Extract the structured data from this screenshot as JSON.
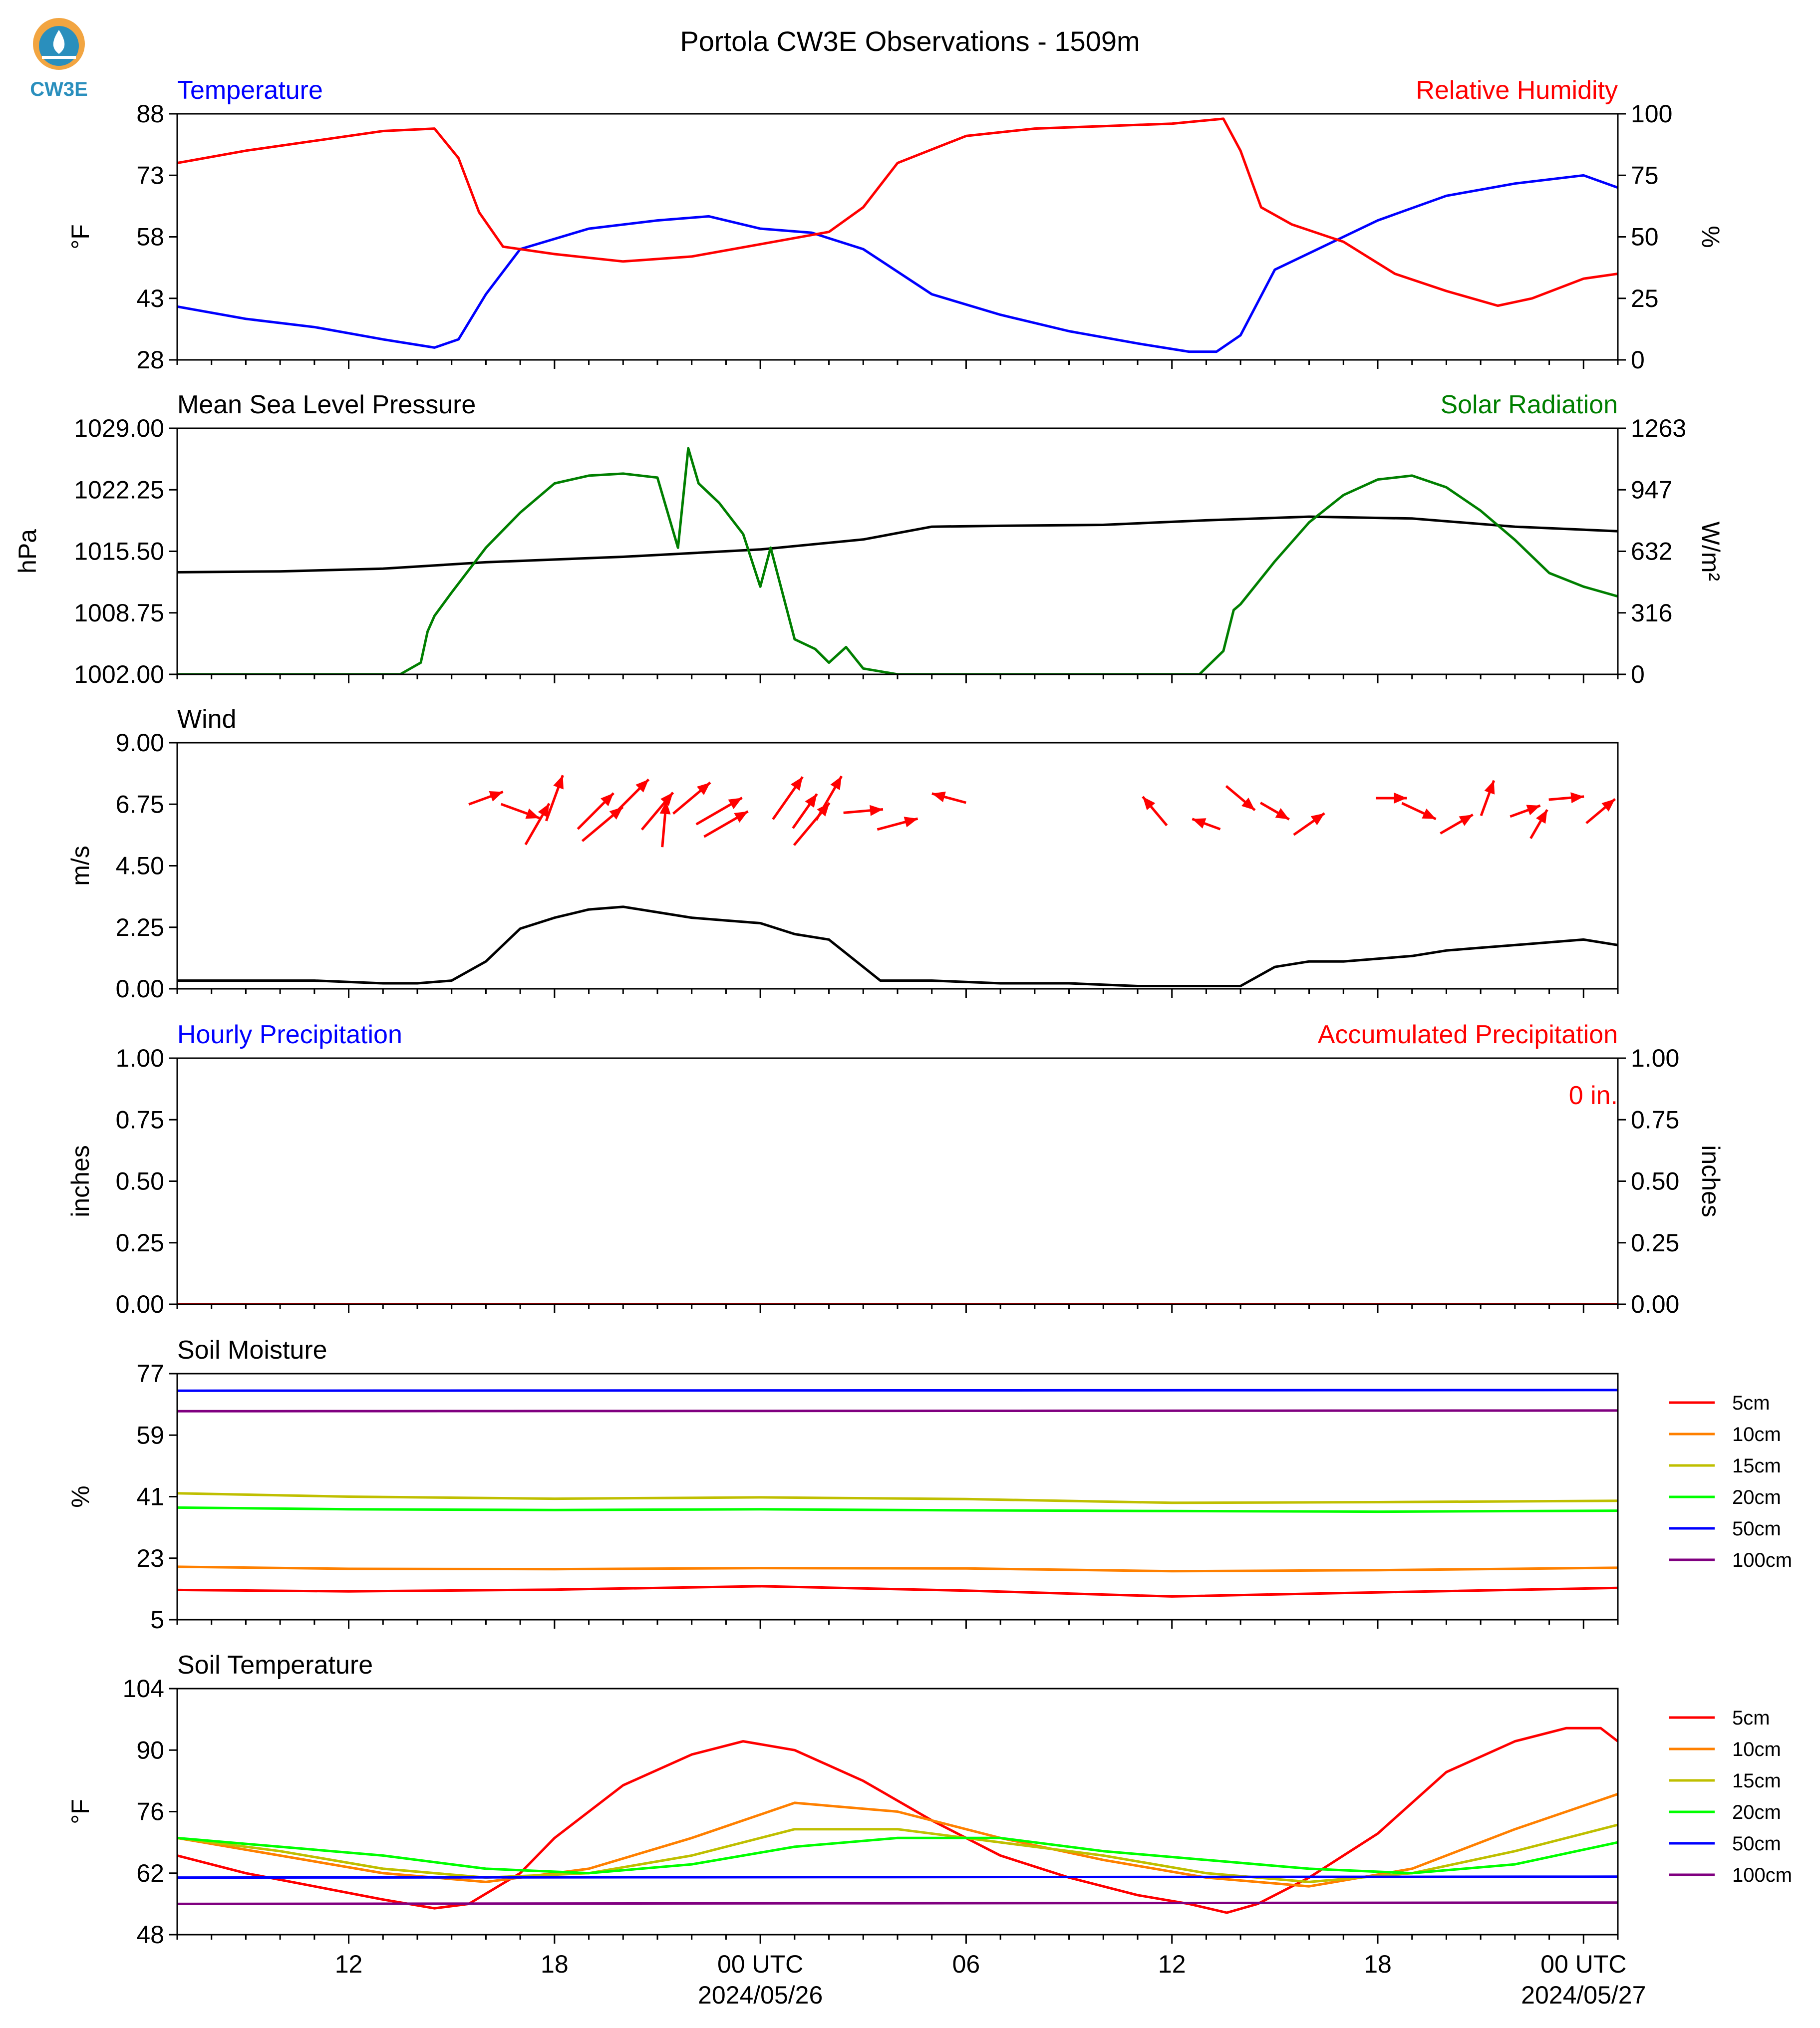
{
  "figure": {
    "title": "Portola CW3E Observations - 1509m",
    "logo_text": "CW3E"
  },
  "time_axis": {
    "tick_labels": [
      "12",
      "18",
      "00 UTC",
      "06",
      "12",
      "18",
      "00 UTC"
    ],
    "tick_hours": [
      12,
      18,
      24,
      30,
      36,
      42,
      48
    ],
    "date_labels": [
      "2024/05/26",
      "2024/05/27"
    ],
    "range_hours": [
      7,
      49
    ]
  },
  "legend_depths": [
    {
      "label": "5cm",
      "color": "#ff0000"
    },
    {
      "label": "10cm",
      "color": "#ff8000"
    },
    {
      "label": "15cm",
      "color": "#bfbf00"
    },
    {
      "label": "20cm",
      "color": "#00ff00"
    },
    {
      "label": "50cm",
      "color": "#0000ff"
    },
    {
      "label": "100cm",
      "color": "#800080"
    }
  ],
  "chart_data": [
    {
      "type": "line",
      "title_left": "Temperature",
      "title_right": "Relative Humidity",
      "ylabel": "°F",
      "ylabel_right": "%",
      "ylim": [
        28,
        88
      ],
      "ylim_right": [
        0,
        100
      ],
      "yticks": [
        "88",
        "73",
        "58",
        "43",
        "28"
      ],
      "yticks_right": [
        "100",
        "75",
        "50",
        "25",
        "0"
      ],
      "series": [
        {
          "name": "Temperature",
          "color": "#0000ff",
          "axis": "left",
          "x": [
            7,
            9,
            11,
            13,
            14.5,
            15.2,
            16,
            17,
            19,
            21,
            22.5,
            24,
            25.5,
            27,
            29,
            31,
            33,
            35,
            36.5,
            37.3,
            38,
            39,
            40,
            42,
            44,
            46,
            48,
            49
          ],
          "y": [
            41,
            38,
            36,
            33,
            31,
            33,
            44,
            55,
            60,
            62,
            63,
            60,
            59,
            55,
            44,
            39,
            35,
            32,
            30,
            30,
            34,
            50,
            54,
            62,
            68,
            71,
            73,
            70
          ]
        },
        {
          "name": "Relative Humidity",
          "color": "#ff0000",
          "axis": "right",
          "x": [
            7,
            9,
            11,
            13,
            14.5,
            15.2,
            15.8,
            16.5,
            18,
            20,
            22,
            24,
            26,
            27,
            28,
            30,
            32,
            34,
            36,
            37.5,
            38,
            38.6,
            39.5,
            41,
            42.5,
            44,
            45.5,
            46.5,
            48,
            49
          ],
          "y": [
            80,
            85,
            89,
            93,
            94,
            82,
            60,
            46,
            43,
            40,
            42,
            47,
            52,
            62,
            80,
            91,
            94,
            95,
            96,
            98,
            85,
            62,
            55,
            48,
            35,
            28,
            22,
            25,
            33,
            35
          ]
        }
      ]
    },
    {
      "type": "line",
      "title_left": "Mean Sea Level Pressure",
      "title_right": "Solar Radiation",
      "ylabel": "hPa",
      "ylabel_right": "W/m²",
      "ylim": [
        1002.0,
        1029.0
      ],
      "ylim_right": [
        0,
        1263
      ],
      "yticks": [
        "1029.00",
        "1022.25",
        "1015.50",
        "1008.75",
        "1002.00"
      ],
      "yticks_right": [
        "1263",
        "947",
        "632",
        "316",
        "0"
      ],
      "series": [
        {
          "name": "Mean Sea Level Pressure",
          "color": "#000000",
          "axis": "left",
          "x": [
            7,
            10,
            13,
            16,
            20,
            24,
            27,
            29,
            31,
            34,
            37,
            40,
            43,
            46,
            49
          ],
          "y": [
            1013.2,
            1013.3,
            1013.6,
            1014.3,
            1014.9,
            1015.7,
            1016.8,
            1018.2,
            1018.3,
            1018.4,
            1018.9,
            1019.3,
            1019.1,
            1018.2,
            1017.7
          ]
        },
        {
          "name": "Solar Radiation",
          "color": "#007f00",
          "axis": "right",
          "x": [
            7,
            13.5,
            14.1,
            14.3,
            14.5,
            15,
            16,
            17,
            18,
            19,
            20,
            21,
            21.6,
            21.9,
            22.2,
            22.8,
            23.5,
            24,
            24.3,
            25,
            25.6,
            26,
            26.5,
            27,
            28,
            36.8,
            37.5,
            37.8,
            38,
            39,
            40,
            41,
            42,
            43,
            44,
            45,
            46,
            47,
            48,
            49
          ],
          "y": [
            0,
            0,
            60,
            220,
            300,
            420,
            650,
            830,
            980,
            1020,
            1030,
            1010,
            650,
            1160,
            980,
            880,
            720,
            450,
            650,
            180,
            130,
            60,
            140,
            30,
            0,
            0,
            120,
            330,
            360,
            580,
            780,
            920,
            1000,
            1020,
            960,
            840,
            690,
            520,
            450,
            400
          ]
        }
      ]
    },
    {
      "type": "line",
      "title_left": "Wind",
      "ylabel": "m/s",
      "ylim": [
        0,
        9
      ],
      "yticks": [
        "9.00",
        "6.75",
        "4.50",
        "2.25",
        "0.00"
      ],
      "series": [
        {
          "name": "Wind speed",
          "color": "#000000",
          "axis": "left",
          "x": [
            7,
            9,
            11,
            13,
            14,
            15,
            16,
            17,
            18,
            19,
            20,
            21,
            22,
            23,
            24,
            25,
            26,
            26.8,
            27.5,
            29,
            31,
            33,
            35,
            37,
            38,
            39,
            40,
            41,
            42,
            43,
            44,
            45,
            46,
            47,
            48,
            49
          ],
          "y": [
            0.3,
            0.3,
            0.3,
            0.2,
            0.2,
            0.3,
            1.0,
            2.2,
            2.6,
            2.9,
            3.0,
            2.8,
            2.6,
            2.5,
            2.4,
            2.0,
            1.8,
            1.0,
            0.3,
            0.3,
            0.2,
            0.2,
            0.1,
            0.1,
            0.1,
            0.8,
            1.0,
            1.0,
            1.1,
            1.2,
            1.4,
            1.5,
            1.6,
            1.7,
            1.8,
            1.6
          ]
        }
      ],
      "wind_barbs": {
        "color": "#ff0000",
        "x": [
          16.0,
          17.0,
          17.5,
          18.0,
          19.2,
          19.4,
          20.2,
          21.0,
          21.2,
          22.0,
          22.8,
          23.0,
          24.8,
          25.3,
          25.5,
          26.0,
          27.0,
          28.0,
          29.5,
          35.5,
          37.0,
          38.0,
          39.0,
          40.0,
          42.4,
          43.2,
          44.3,
          45.2,
          46.3,
          46.7,
          47.5,
          48.5
        ],
        "dir_deg": [
          250,
          290,
          210,
          200,
          225,
          230,
          225,
          220,
          185,
          230,
          240,
          240,
          215,
          215,
          220,
          210,
          265,
          255,
          105,
          140,
          110,
          310,
          300,
          235,
          270,
          295,
          240,
          200,
          250,
          210,
          265,
          230
        ],
        "speed": [
          1.5,
          1.9,
          2.5,
          2.6,
          2.8,
          3.0,
          3.0,
          2.6,
          2.4,
          2.6,
          3.0,
          2.8,
          2.9,
          2.0,
          3.2,
          2.8,
          1.8,
          2.0,
          1.4,
          1.6,
          0.9,
          1.6,
          1.2,
          1.6,
          1.0,
          1.6,
          1.6,
          1.6,
          1.1,
          1.2,
          1.4,
          1.6
        ]
      }
    },
    {
      "type": "line",
      "title_left": "Hourly Precipitation",
      "title_right": "Accumulated Precipitation",
      "annotation": "0 in.",
      "ylabel": "inches",
      "ylabel_right": "inches",
      "ylim": [
        0,
        1
      ],
      "ylim_right": [
        0,
        1
      ],
      "yticks": [
        "1.00",
        "0.75",
        "0.50",
        "0.25",
        "0.00"
      ],
      "yticks_right": [
        "1.00",
        "0.75",
        "0.50",
        "0.25",
        "0.00"
      ],
      "series": [
        {
          "name": "Hourly Precipitation",
          "color": "#0000ff",
          "axis": "left",
          "x": [
            7,
            49
          ],
          "y": [
            0,
            0
          ]
        },
        {
          "name": "Accumulated Precipitation",
          "color": "#ff0000",
          "axis": "right",
          "x": [
            7,
            49
          ],
          "y": [
            0,
            0
          ]
        }
      ]
    },
    {
      "type": "line",
      "title_left": "Soil Moisture",
      "ylabel": "%",
      "ylim": [
        5,
        77
      ],
      "yticks": [
        "77",
        "59",
        "41",
        "23",
        "5"
      ],
      "series": [
        {
          "name": "5cm",
          "color": "#ff0000",
          "x": [
            7,
            12,
            18,
            24,
            30,
            36,
            42,
            49
          ],
          "y": [
            13.7,
            13.3,
            13.8,
            14.8,
            13.5,
            11.8,
            13.0,
            14.3
          ]
        },
        {
          "name": "10cm",
          "color": "#ff8000",
          "x": [
            7,
            12,
            18,
            24,
            30,
            36,
            42,
            49
          ],
          "y": [
            20.5,
            19.9,
            19.8,
            20.1,
            20.0,
            19.2,
            19.5,
            20.2
          ]
        },
        {
          "name": "15cm",
          "color": "#bfbf00",
          "x": [
            7,
            12,
            18,
            24,
            30,
            36,
            42,
            49
          ],
          "y": [
            42.0,
            41.0,
            40.4,
            40.8,
            40.3,
            39.2,
            39.4,
            39.8
          ]
        },
        {
          "name": "20cm",
          "color": "#00ff00",
          "x": [
            7,
            12,
            18,
            24,
            30,
            36,
            42,
            49
          ],
          "y": [
            37.8,
            37.3,
            37.1,
            37.3,
            37.0,
            36.8,
            36.6,
            36.9
          ]
        },
        {
          "name": "50cm",
          "color": "#0000ff",
          "x": [
            7,
            49
          ],
          "y": [
            72.0,
            72.2
          ]
        },
        {
          "name": "100cm",
          "color": "#800080",
          "x": [
            7,
            49
          ],
          "y": [
            66.0,
            66.2
          ]
        }
      ]
    },
    {
      "type": "line",
      "title_left": "Soil Temperature",
      "ylabel": "°F",
      "ylim": [
        48,
        104
      ],
      "yticks": [
        "104",
        "90",
        "76",
        "62",
        "48"
      ],
      "series": [
        {
          "name": "5cm",
          "color": "#ff0000",
          "x": [
            7,
            9,
            11,
            13,
            14.5,
            15.5,
            17,
            18,
            20,
            22,
            23.5,
            25,
            27,
            29,
            31,
            33,
            35,
            36.5,
            37.6,
            38.5,
            40,
            41,
            42,
            44,
            46,
            47.5,
            48.5,
            49
          ],
          "y": [
            66,
            62,
            59,
            56,
            54,
            55,
            62,
            70,
            82,
            89,
            92,
            90,
            83,
            74,
            66,
            61,
            57,
            55,
            53,
            55,
            61,
            66,
            71,
            85,
            92,
            95,
            95,
            92
          ]
        },
        {
          "name": "10cm",
          "color": "#ff8000",
          "x": [
            7,
            10,
            13,
            16,
            19,
            22,
            25,
            28,
            31,
            34,
            37,
            40,
            43,
            46,
            49
          ],
          "y": [
            70,
            66,
            62,
            60,
            63,
            70,
            78,
            76,
            70,
            65,
            61,
            59,
            63,
            72,
            80
          ]
        },
        {
          "name": "15cm",
          "color": "#bfbf00",
          "x": [
            7,
            10,
            13,
            16,
            19,
            22,
            25,
            28,
            31,
            34,
            37,
            40,
            43,
            46,
            49
          ],
          "y": [
            70,
            67,
            63,
            61,
            62,
            66,
            72,
            72,
            69,
            66,
            62,
            60,
            62,
            67,
            73
          ]
        },
        {
          "name": "20cm",
          "color": "#00ff00",
          "x": [
            7,
            10,
            13,
            16,
            19,
            22,
            25,
            28,
            31,
            34,
            37,
            40,
            43,
            46,
            49
          ],
          "y": [
            70,
            68,
            66,
            63,
            62,
            64,
            68,
            70,
            70,
            67,
            65,
            63,
            62,
            64,
            69
          ]
        },
        {
          "name": "50cm",
          "color": "#0000ff",
          "x": [
            7,
            49
          ],
          "y": [
            61,
            61.2
          ]
        },
        {
          "name": "100cm",
          "color": "#800080",
          "x": [
            7,
            49
          ],
          "y": [
            55,
            55.3
          ]
        }
      ]
    }
  ]
}
